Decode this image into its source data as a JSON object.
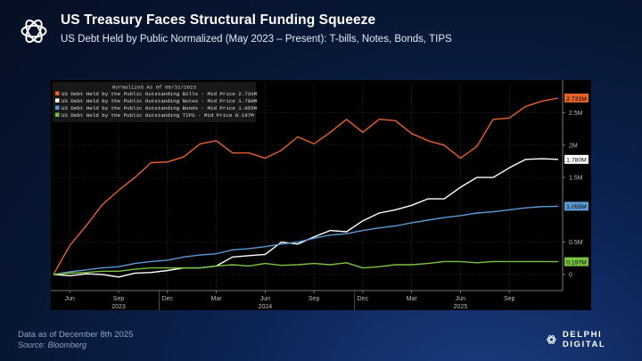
{
  "header": {
    "title": "US Treasury Faces Structural Funding Squeeze",
    "subtitle": "US Debt Held by Public Normalized (May 2023 – Present): T-bills, Notes, Bonds, TIPS"
  },
  "footer": {
    "date": "Data as of December 8th 2025",
    "source": "Source: Bloomberg"
  },
  "brand": {
    "name": "DELPHI DIGITAL"
  },
  "chart_data": {
    "type": "line",
    "legend_title": "Normalized As Of 05/31/2023",
    "x": [
      "2023-05",
      "2023-06",
      "2023-07",
      "2023-08",
      "2023-09",
      "2023-10",
      "2023-11",
      "2023-12",
      "2024-01",
      "2024-02",
      "2024-03",
      "2024-04",
      "2024-05",
      "2024-06",
      "2024-07",
      "2024-08",
      "2024-09",
      "2024-10",
      "2024-11",
      "2024-12",
      "2025-01",
      "2025-02",
      "2025-03",
      "2025-04",
      "2025-05",
      "2025-06",
      "2025-07",
      "2025-08",
      "2025-09",
      "2025-10",
      "2025-11",
      "2025-12"
    ],
    "x_ticks": [
      {
        "i": 1,
        "label": "Jun"
      },
      {
        "i": 4,
        "label": "Sep"
      },
      {
        "i": 7,
        "label": "Dec"
      },
      {
        "i": 10,
        "label": "Mar"
      },
      {
        "i": 13,
        "label": "Jun"
      },
      {
        "i": 16,
        "label": "Sep"
      },
      {
        "i": 19,
        "label": "Dec"
      },
      {
        "i": 22,
        "label": "Mar"
      },
      {
        "i": 25,
        "label": "Jun"
      },
      {
        "i": 28,
        "label": "Sep"
      }
    ],
    "year_labels": [
      {
        "i": 4,
        "label": "2023"
      },
      {
        "i": 13,
        "label": "2024"
      },
      {
        "i": 25,
        "label": "2025"
      }
    ],
    "y_ticks": [
      {
        "v": 0,
        "label": "0"
      },
      {
        "v": 0.5,
        "label": "0.5M"
      },
      {
        "v": 1.5,
        "label": "1.5M"
      },
      {
        "v": 2,
        "label": "2M"
      },
      {
        "v": 2.5,
        "label": "2.5M"
      }
    ],
    "ylim": [
      -0.25,
      2.95
    ],
    "series": [
      {
        "name": "US Debt Held by the Public Outstanding Bills - Mid Price",
        "last": "2.731M",
        "color": "#e8622a",
        "values": [
          0,
          0.45,
          0.75,
          1.08,
          1.3,
          1.5,
          1.73,
          1.74,
          1.82,
          2.02,
          2.07,
          1.88,
          1.88,
          1.8,
          1.92,
          2.13,
          2.02,
          2.2,
          2.4,
          2.2,
          2.4,
          2.38,
          2.18,
          2.07,
          2.0,
          1.8,
          1.98,
          2.4,
          2.42,
          2.6,
          2.68,
          2.73
        ]
      },
      {
        "name": "US Debt Held by the Public Outstanding Notes - Mid Price",
        "last": "1.780M",
        "color": "#ffffff",
        "values": [
          0,
          -0.02,
          0.01,
          0.0,
          -0.04,
          0.02,
          0.03,
          0.06,
          0.1,
          0.1,
          0.13,
          0.27,
          0.29,
          0.31,
          0.5,
          0.47,
          0.58,
          0.68,
          0.66,
          0.83,
          0.95,
          1.0,
          1.07,
          1.17,
          1.17,
          1.35,
          1.5,
          1.5,
          1.65,
          1.78,
          1.79,
          1.78
        ]
      },
      {
        "name": "US Debt Held by the Public Outstanding Bonds - Mid Price",
        "last": "1.055M",
        "color": "#5b9ad5",
        "values": [
          0,
          0.04,
          0.07,
          0.1,
          0.12,
          0.17,
          0.2,
          0.22,
          0.27,
          0.3,
          0.32,
          0.38,
          0.4,
          0.43,
          0.47,
          0.5,
          0.56,
          0.61,
          0.63,
          0.68,
          0.72,
          0.75,
          0.8,
          0.84,
          0.88,
          0.91,
          0.95,
          0.97,
          1.0,
          1.03,
          1.05,
          1.055
        ]
      },
      {
        "name": "US Debt Held by the Public Outstanding TIPS - Mid Price",
        "last": "0.197M",
        "color": "#7cc242",
        "values": [
          0,
          0.02,
          0.03,
          0.05,
          0.05,
          0.08,
          0.1,
          0.1,
          0.1,
          0.1,
          0.13,
          0.15,
          0.13,
          0.17,
          0.14,
          0.15,
          0.17,
          0.15,
          0.18,
          0.1,
          0.12,
          0.15,
          0.15,
          0.17,
          0.2,
          0.2,
          0.18,
          0.2,
          0.2,
          0.2,
          0.2,
          0.197
        ]
      }
    ]
  }
}
